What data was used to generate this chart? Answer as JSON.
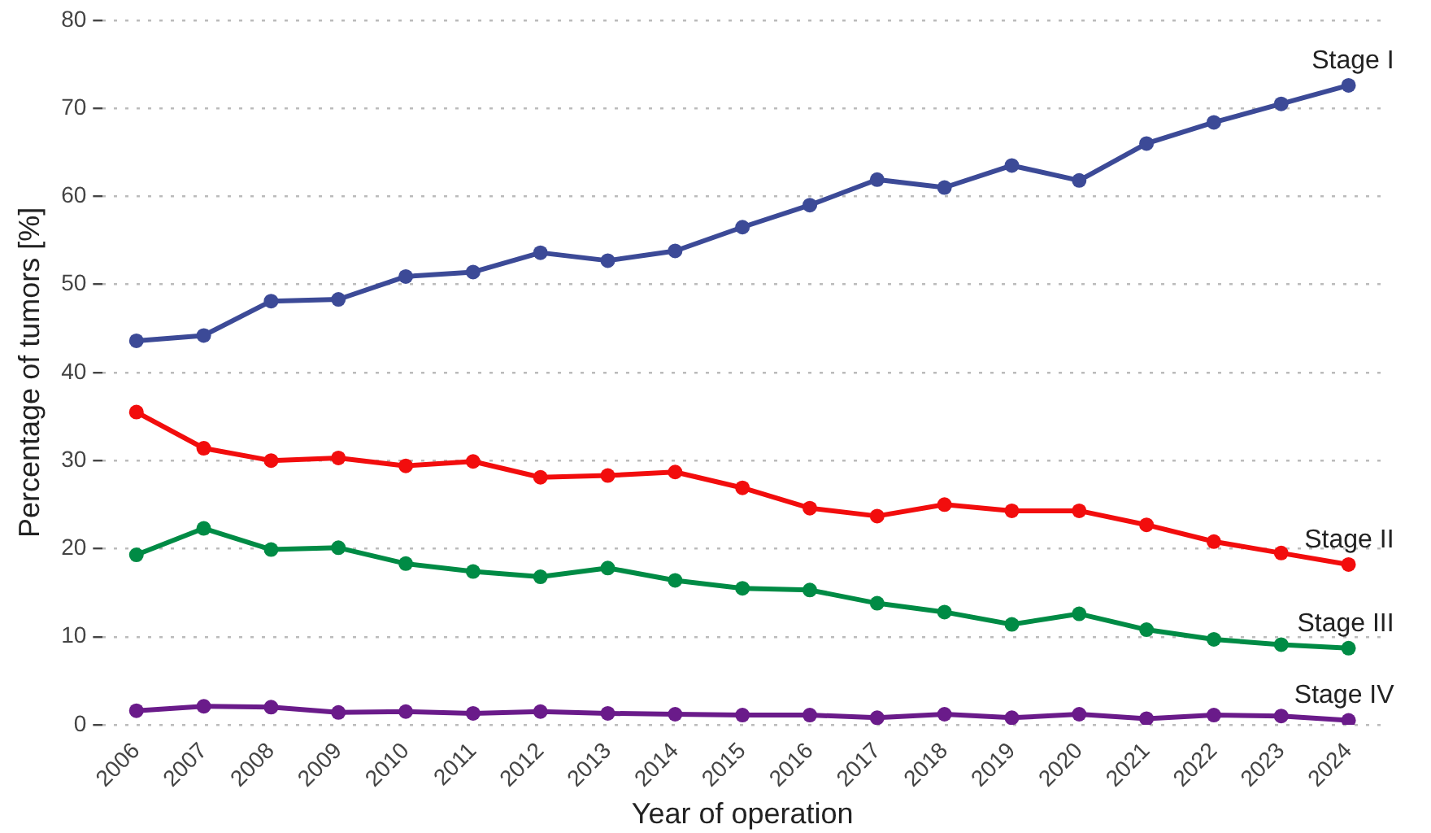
{
  "chart_data": {
    "type": "line",
    "xlabel": "Year of operation",
    "ylabel": "Percentage of tumors [%]",
    "categories": [
      "2006",
      "2007",
      "2008",
      "2009",
      "2010",
      "2011",
      "2012",
      "2013",
      "2014",
      "2015",
      "2016",
      "2017",
      "2018",
      "2019",
      "2020",
      "2021",
      "2022",
      "2023",
      "2024"
    ],
    "series": [
      {
        "name": "Stage I",
        "color": "#3c4a97",
        "values": [
          43.6,
          44.2,
          48.1,
          48.3,
          50.9,
          51.4,
          53.6,
          52.7,
          53.8,
          56.5,
          59.0,
          61.9,
          61.0,
          63.5,
          61.8,
          66.0,
          68.4,
          70.5,
          72.6
        ]
      },
      {
        "name": "Stage II",
        "color": "#f20d0d",
        "values": [
          35.5,
          31.4,
          30.0,
          30.3,
          29.4,
          29.9,
          28.1,
          28.3,
          28.7,
          26.9,
          24.6,
          23.7,
          25.0,
          24.3,
          24.3,
          22.7,
          20.8,
          19.5,
          18.2
        ]
      },
      {
        "name": "Stage III",
        "color": "#008b45",
        "values": [
          19.3,
          22.3,
          19.9,
          20.1,
          18.3,
          17.4,
          16.8,
          17.8,
          16.4,
          15.5,
          15.3,
          13.8,
          12.8,
          11.4,
          12.6,
          10.8,
          9.7,
          9.1,
          8.7
        ]
      },
      {
        "name": "Stage IV",
        "color": "#6a1b8a",
        "values": [
          1.6,
          2.1,
          2.0,
          1.4,
          1.5,
          1.3,
          1.5,
          1.3,
          1.2,
          1.1,
          1.1,
          0.8,
          1.2,
          0.8,
          1.2,
          0.7,
          1.1,
          1.0,
          0.5
        ]
      }
    ],
    "ylim": [
      0,
      80
    ],
    "yticks": [
      0,
      10,
      20,
      30,
      40,
      50,
      60,
      70,
      80
    ],
    "grid": "y",
    "legend": false,
    "marker": "circle",
    "line_style": "solid"
  }
}
